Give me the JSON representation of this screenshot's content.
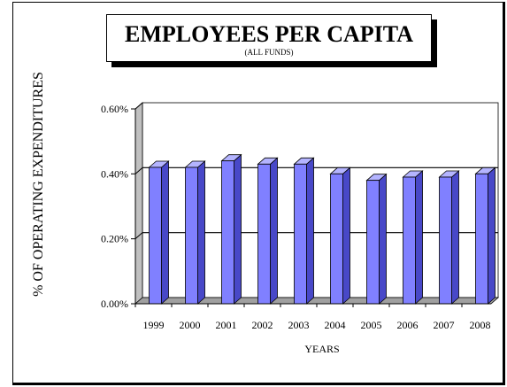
{
  "chart_data": {
    "type": "bar",
    "title": "EMPLOYEES PER CAPITA",
    "subtitle": "(ALL FUNDS)",
    "xlabel": "YEARS",
    "ylabel": "% OF OPERATING EXPENDITURES",
    "categories": [
      "1999",
      "2000",
      "2001",
      "2002",
      "2003",
      "2004",
      "2005",
      "2006",
      "2007",
      "2008"
    ],
    "values": [
      0.42,
      0.42,
      0.44,
      0.43,
      0.43,
      0.4,
      0.38,
      0.39,
      0.39,
      0.4
    ],
    "ylim": [
      0,
      0.6
    ],
    "yticks": [
      0,
      0.2,
      0.4,
      0.6
    ],
    "ytick_labels": [
      "0.00%",
      "0.20%",
      "0.40%",
      "0.60%"
    ],
    "grid": true,
    "legend": false,
    "bar_color": "#8080ff",
    "bar_side_color": "#4848c8",
    "bar_top_color": "#b4b4ff",
    "wall_color": "#ffffff",
    "side_wall_color": "#c0c0c0",
    "floor_color": "#a0a0a0"
  }
}
